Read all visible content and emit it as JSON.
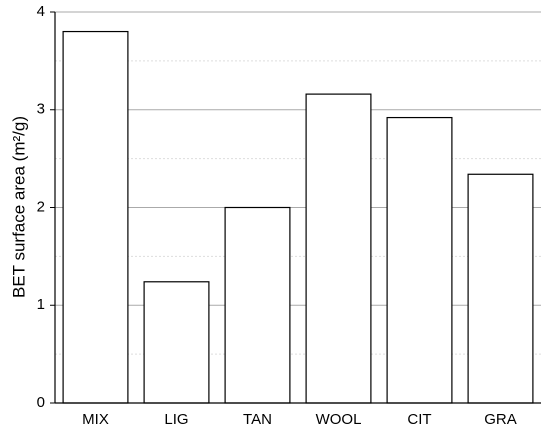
{
  "chart_data": {
    "type": "bar",
    "ylabel": "BET surface area (m²/g)",
    "categories": [
      "MIX",
      "LIG",
      "TAN",
      "WOOL",
      "CIT",
      "GRA"
    ],
    "values": [
      3.8,
      1.24,
      2.0,
      3.16,
      2.92,
      2.34
    ],
    "color": "#ffffff",
    "edgecolor": "#000000",
    "ylim": [
      0,
      4
    ],
    "yticks": [
      0,
      1,
      2,
      3,
      4
    ],
    "minor_yticks": [
      0.5,
      1.5,
      2.5,
      3.5
    ],
    "grid": true
  }
}
